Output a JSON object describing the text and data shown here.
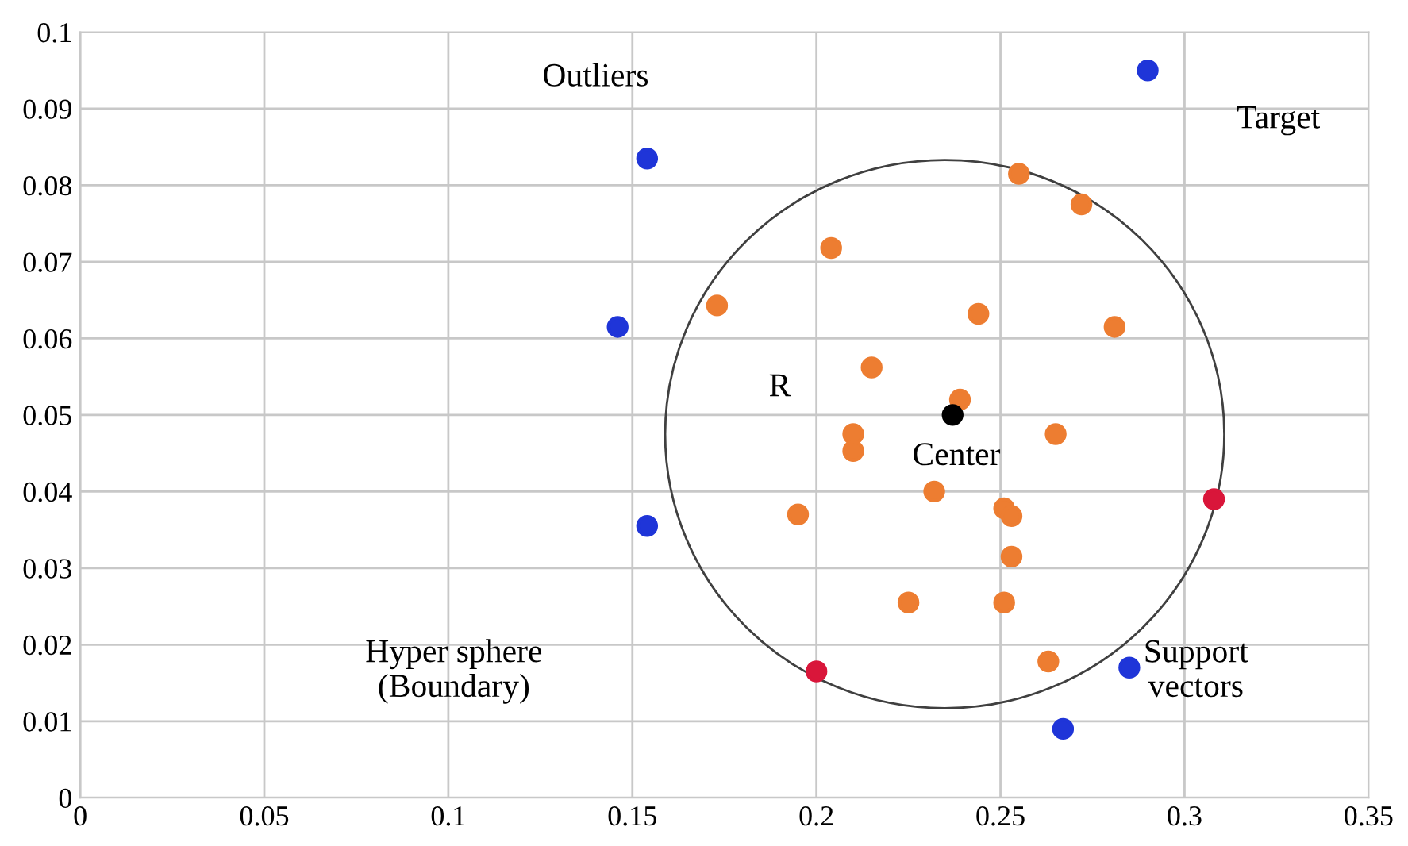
{
  "chart_data": {
    "type": "scatter",
    "xlim": [
      0,
      0.35
    ],
    "ylim": [
      0,
      0.1
    ],
    "xticks": [
      0,
      0.05,
      0.1,
      0.15,
      0.2,
      0.25,
      0.3,
      0.35
    ],
    "yticks": [
      0,
      0.01,
      0.02,
      0.03,
      0.04,
      0.05,
      0.06,
      0.07,
      0.08,
      0.09,
      0.1
    ],
    "grid": true,
    "marker": "circle",
    "series": [
      {
        "color": "#ed7d31",
        "x": [
          0.255,
          0.272,
          0.204,
          0.173,
          0.244,
          0.281,
          0.215,
          0.239,
          0.21,
          0.265,
          0.21,
          0.232,
          0.195,
          0.251,
          0.253,
          0.253,
          0.225,
          0.251,
          0.263
        ],
        "values": [
          0.0815,
          0.0775,
          0.0718,
          0.0643,
          0.0632,
          0.0615,
          0.0562,
          0.052,
          0.0475,
          0.0475,
          0.0453,
          0.04,
          0.037,
          0.0378,
          0.0368,
          0.0315,
          0.0255,
          0.0255,
          0.0178
        ]
      },
      {
        "color": "#1f35d8",
        "x": [
          0.29,
          0.154,
          0.146,
          0.154,
          0.285,
          0.267
        ],
        "values": [
          0.095,
          0.0835,
          0.0615,
          0.0355,
          0.017,
          0.009
        ]
      },
      {
        "color": "#d9163a",
        "x": [
          0.308,
          0.2
        ],
        "values": [
          0.039,
          0.0165
        ]
      },
      {
        "color": "#000000",
        "x": [
          0.237
        ],
        "values": [
          0.05
        ]
      }
    ],
    "annotations": [
      "Outliers",
      "Target",
      "R",
      "Center",
      "Support\nvectors",
      "Hyper sphere\n(Boundary)"
    ]
  }
}
